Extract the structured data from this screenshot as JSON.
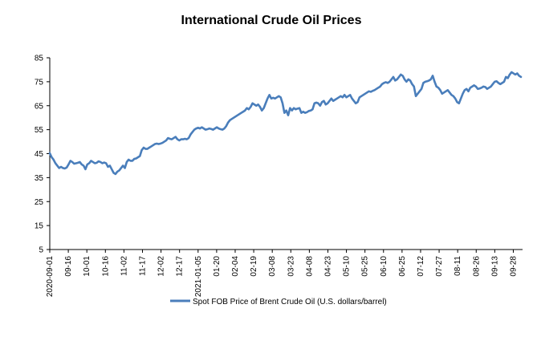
{
  "chart_data": {
    "type": "line",
    "title": "International Crude Oil Prices",
    "xlabel": "",
    "ylabel": "",
    "ylim": [
      5,
      85
    ],
    "yticks": [
      5,
      15,
      25,
      35,
      45,
      55,
      65,
      75,
      85
    ],
    "grid": false,
    "legend_position": "bottom",
    "line_color": "#4a7ebb",
    "x_tick_labels": [
      "2020-09-01",
      "09-16",
      "10-01",
      "10-16",
      "11-02",
      "11-17",
      "12-02",
      "12-17",
      "2021-01-05",
      "01-20",
      "02-04",
      "02-19",
      "03-08",
      "03-23",
      "04-08",
      "04-23",
      "05-10",
      "05-25",
      "06-10",
      "06-25",
      "07-12",
      "07-27",
      "08-11",
      "08-26",
      "09-13",
      "09-28"
    ],
    "series": [
      {
        "name": "Spot FOB Price of Brent Crude Oil (U.S. dollars/barrel)",
        "values": [
          45.2,
          43.5,
          42.5,
          41,
          40,
          39,
          39.5,
          39,
          38.8,
          39.2,
          40.5,
          42,
          41.5,
          40.8,
          41,
          41.2,
          41.5,
          40.5,
          40,
          38.5,
          40.5,
          41,
          42,
          41.5,
          41,
          41.2,
          41.8,
          41.5,
          41,
          41.3,
          41,
          39.5,
          40,
          38.5,
          37,
          36.5,
          37.5,
          38,
          39,
          40,
          39,
          41.5,
          42.5,
          42,
          42,
          42.8,
          43,
          43.5,
          44,
          46.5,
          47.5,
          47,
          47,
          47.5,
          48,
          48.5,
          49,
          49.2,
          49,
          49.2,
          49.5,
          50,
          50.5,
          51.5,
          51.2,
          51,
          51.5,
          52,
          51,
          50.5,
          51,
          51,
          51.2,
          51,
          51.5,
          53,
          54,
          55,
          55.5,
          55.8,
          55.5,
          56,
          55.5,
          55,
          55.2,
          55.5,
          55.3,
          55,
          55.5,
          56,
          55.5,
          55.2,
          55,
          55.5,
          56.5,
          58,
          59,
          59.5,
          60,
          60.5,
          61,
          61.5,
          62,
          62.5,
          63,
          64,
          63.5,
          64.5,
          66,
          65.5,
          65,
          65.5,
          64.5,
          63,
          64,
          66,
          68,
          69.5,
          68,
          68.3,
          68,
          68.5,
          69,
          68.5,
          66,
          62,
          63,
          61,
          64,
          63,
          64,
          63.5,
          63.8,
          64,
          62,
          62.5,
          62,
          62.3,
          62.8,
          63,
          63.5,
          66,
          66.3,
          66,
          65,
          66.5,
          67,
          65.5,
          66,
          67,
          68,
          67,
          67.5,
          68,
          68.5,
          69,
          68.5,
          69.5,
          68.5,
          69,
          69.5,
          68,
          67,
          66,
          66.5,
          68.5,
          69,
          69.5,
          70,
          70.5,
          71,
          70.8,
          71.2,
          71.5,
          72,
          72.5,
          73,
          74,
          74.5,
          74.8,
          74.5,
          75,
          76,
          77,
          75.5,
          76,
          77,
          78,
          77.5,
          76,
          75,
          76,
          75.5,
          74,
          73,
          69,
          70,
          71,
          72,
          74.5,
          75,
          75.2,
          75.5,
          76,
          77.5,
          75,
          73,
          72.5,
          71.5,
          70,
          70.5,
          71,
          71.5,
          70.5,
          69.5,
          69,
          68,
          66.5,
          66,
          68,
          70,
          71.5,
          72,
          71,
          72.5,
          73,
          73.5,
          73,
          72,
          72.2,
          72.5,
          73,
          72.8,
          72,
          72.5,
          73,
          74,
          75,
          75.2,
          74.5,
          74,
          74.5,
          75,
          77,
          76.5,
          78,
          79,
          78.5,
          78,
          78.5,
          77.5,
          77
        ]
      }
    ]
  }
}
